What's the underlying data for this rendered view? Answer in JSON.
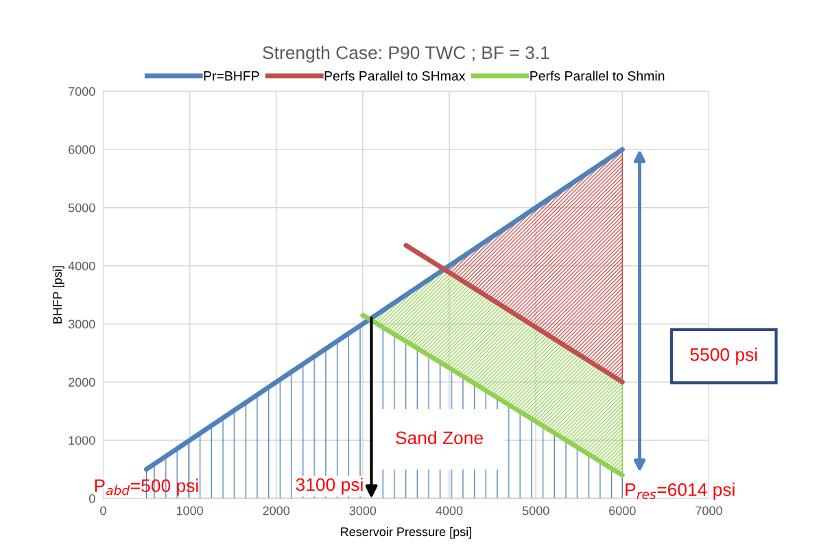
{
  "chart_data": {
    "type": "line",
    "title": "Strength Case: P90 TWC ; BF = 3.1",
    "xlabel": "Reservoir Pressure [psi]",
    "ylabel": "BHFP [psi]",
    "xlim": [
      0,
      7000
    ],
    "ylim": [
      0,
      7000
    ],
    "xticks": [
      0,
      1000,
      2000,
      3000,
      4000,
      5000,
      6000,
      7000
    ],
    "yticks": [
      0,
      1000,
      2000,
      3000,
      4000,
      5000,
      6000,
      7000
    ],
    "grid": true,
    "legend": "top",
    "series": [
      {
        "name": "Pr=BHFP",
        "color": "#4f81bd",
        "x": [
          500,
          3080,
          6000
        ],
        "values": [
          500,
          3080,
          6000
        ],
        "lower": [
          0,
          0,
          0
        ],
        "upper": [
          500,
          3080,
          400
        ]
      },
      {
        "name": "Perfs Parallel to SHmax",
        "color": "#c0504d",
        "x": [
          3500,
          3940,
          6000
        ],
        "values": [
          4350,
          3940,
          2000
        ],
        "lower": [
          null,
          3940,
          2000
        ],
        "upper": [
          null,
          3940,
          6000
        ]
      },
      {
        "name": "Perfs Parallel to Shmin",
        "color": "#92d050",
        "x": [
          3000,
          3080,
          3940,
          6000
        ],
        "values": [
          3150,
          3080,
          2300,
          400
        ],
        "lower": [
          null,
          3080,
          2300,
          400
        ],
        "upper": [
          null,
          3080,
          3940,
          2000
        ]
      }
    ],
    "annotations": [
      {
        "text": "P$_{abd}$=500 psi",
        "x": 500,
        "y": 500
      },
      {
        "text": "3100 psi",
        "x": 3100,
        "y": 3100
      },
      {
        "text": "P$_{res}$=6014 psi",
        "x": 6000,
        "y": 400
      },
      "Sand Zone",
      "5500 psi"
    ]
  }
}
